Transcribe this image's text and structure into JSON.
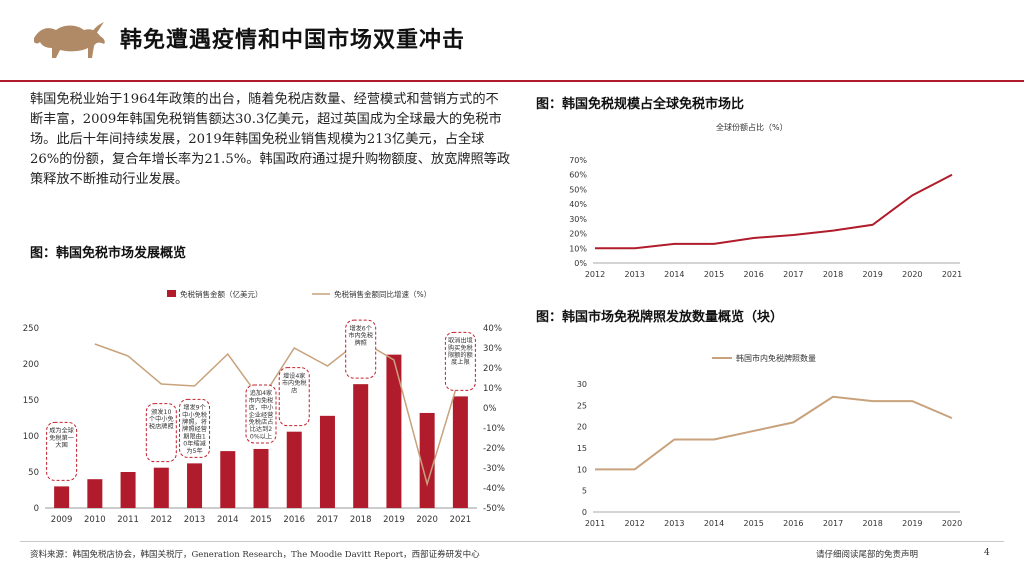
{
  "page": {
    "title": "韩免遭遇疫情和中国市场双重冲击",
    "intro": "韩国免税业始于1964年政策的出台，随着免税店数量、经营模式和营销方式的不断丰富，2009年韩国免税销售额达30.3亿美元，超过英国成为全球最大的免税市场。此后十年间持续发展，2019年韩国免税业销售规模为213亿美元，占全球26%的份额，复合年增长率为21.5%。韩国政府通过提升购物额度、放宽牌照等政策释放不断推动行业发展。",
    "footer_source": "资料来源：韩国免税店协会，韩国关税厅，Generation Research，The Moodie Davitt Report，西部证券研发中心",
    "footer_disclaimer": "请仔细阅读尾部的免责声明",
    "page_number": "4"
  },
  "colors": {
    "accent": "#b01c2b",
    "line_tan": "#c8a27c",
    "dashed_red": "#c0202d"
  },
  "figures": {
    "left_title": "图：韩国免税市场发展概览",
    "right_top_title": "图：韩国免税规模占全球免税市场比",
    "right_bottom_title": "图：韩国市场免税牌照发放数量概览（块）"
  },
  "chart_data": [
    {
      "id": "korea-duty-free-overview",
      "type": "bar",
      "title": "图：韩国免税市场发展概览",
      "categories": [
        "2009",
        "2010",
        "2011",
        "2012",
        "2013",
        "2014",
        "2015",
        "2016",
        "2017",
        "2018",
        "2019",
        "2020",
        "2021"
      ],
      "series": [
        {
          "name": "免税销售金额（亿美元）",
          "type": "bar",
          "axis": "left",
          "values": [
            30,
            40,
            50,
            56,
            62,
            79,
            82,
            106,
            128,
            172,
            213,
            132,
            155
          ]
        },
        {
          "name": "免税销售金额同比增速（%）",
          "type": "line",
          "axis": "right",
          "values": [
            null,
            32,
            26,
            12,
            11,
            27,
            4,
            30,
            21,
            34,
            24,
            -38,
            17
          ]
        }
      ],
      "ylim_left": [
        0,
        250
      ],
      "yticks_left": [
        "0",
        "50",
        "100",
        "150",
        "200",
        "250"
      ],
      "ylim_right": [
        -50,
        40
      ],
      "yticks_right": [
        "-50%",
        "-40%",
        "-30%",
        "-20%",
        "-10%",
        "0%",
        "10%",
        "20%",
        "30%",
        "40%"
      ],
      "annotations": [
        {
          "year": "2009",
          "text": "成为全球免税第一大国"
        },
        {
          "year": "2012",
          "text": "颁发10个中小免税店牌照"
        },
        {
          "year": "2013",
          "text": "增发9个中小免税牌照，将牌照经营期限由10年缩减为5年"
        },
        {
          "year": "2015",
          "text": "追加4家市内免税店，中小企业经营免税店占比达到20%以上"
        },
        {
          "year": "2016",
          "text": "增设4家市内免税店"
        },
        {
          "year": "2018",
          "text": "增发6个市内免税牌照"
        },
        {
          "year": "2021",
          "text": "取消出境购买免税限额的额度上限"
        }
      ]
    },
    {
      "id": "global-share",
      "type": "line",
      "title": "图：韩国免税规模占全球免税市场比",
      "legend": "全球份额占比（%）",
      "categories": [
        "2012",
        "2013",
        "2014",
        "2015",
        "2016",
        "2017",
        "2018",
        "2019",
        "2020",
        "2021"
      ],
      "values": [
        10,
        10,
        13,
        13,
        17,
        19,
        22,
        26,
        46,
        60
      ],
      "ylim": [
        0,
        70
      ],
      "yticks": [
        "0%",
        "10%",
        "20%",
        "30%",
        "40%",
        "50%",
        "60%",
        "70%"
      ]
    },
    {
      "id": "license-count",
      "type": "line",
      "title": "图：韩国市场免税牌照发放数量概览（块）",
      "legend": "韩国市内免税牌照数量",
      "categories": [
        "2011",
        "2012",
        "2013",
        "2014",
        "2015",
        "2016",
        "2017",
        "2018",
        "2019",
        "2020"
      ],
      "values": [
        10,
        10,
        17,
        17,
        19,
        21,
        27,
        26,
        26,
        22
      ],
      "ylim": [
        0,
        30
      ],
      "yticks": [
        "0",
        "5",
        "10",
        "15",
        "20",
        "25",
        "30"
      ]
    }
  ]
}
